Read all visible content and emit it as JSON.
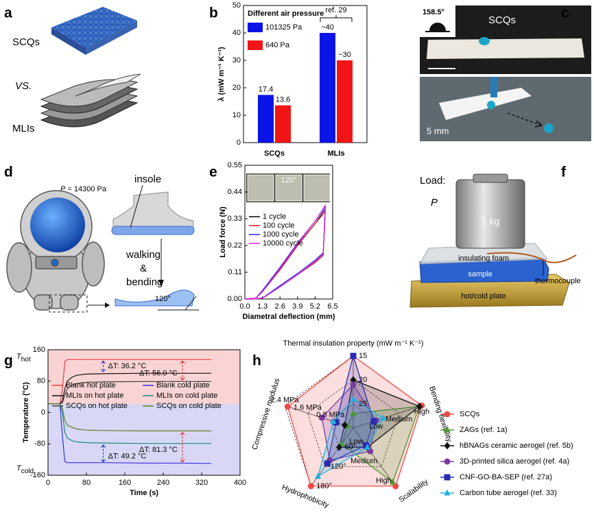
{
  "figure": {
    "panels": {
      "a": {
        "label": "a",
        "texts": [
          "SCQs",
          "VS.",
          "MLIs"
        ]
      },
      "c": {
        "label": "c",
        "texts": [
          "158.5°",
          "SCQs",
          "5 mm"
        ]
      },
      "d": {
        "label": "d",
        "pressure_symbol": "P",
        "pressure_value": " = 14300 Pa",
        "texts": [
          "insole",
          "walking",
          "&",
          "bending",
          "120°"
        ]
      },
      "f": {
        "label": "f",
        "texts": [
          "Load:",
          "P",
          "1 kg",
          "insulating foam",
          "sample",
          "thermocouple",
          "hot/cold plate"
        ]
      }
    }
  },
  "chart_data": [
    {
      "panel": "b",
      "type": "bar",
      "legend_title": "Different air pressure",
      "categories": [
        "SCQs",
        "MLIs"
      ],
      "series": [
        {
          "name": "101325 Pa",
          "color": "#0b14e6",
          "values": [
            17.4,
            40
          ],
          "value_labels": [
            "17.4",
            "~40"
          ]
        },
        {
          "name": "640 Pa",
          "color": "#f21515",
          "values": [
            13.6,
            30
          ],
          "value_labels": [
            "13.6",
            "~30"
          ]
        }
      ],
      "ylabel": "λ (mW m⁻¹ K⁻¹)",
      "ylim": [
        0,
        50
      ],
      "yticks": [
        0,
        10,
        20,
        30,
        40,
        50
      ],
      "annotations": [
        "ref. 29"
      ]
    },
    {
      "panel": "e",
      "type": "line",
      "x": [
        0,
        0.8,
        1.3,
        2.6,
        3.9,
        5.2,
        5.95,
        5.85,
        5.8,
        5.2,
        3.9,
        2.6,
        1.3,
        0.6,
        0
      ],
      "series": [
        {
          "name": "1 cycle",
          "color": "#000000",
          "values": [
            0,
            0.003,
            0.03,
            0.12,
            0.22,
            0.31,
            0.37,
            0.25,
            0.18,
            0.15,
            0.1,
            0.05,
            0.003,
            0,
            0
          ]
        },
        {
          "name": "100 cycle",
          "color": "#e8141e",
          "values": [
            0,
            0.003,
            0.03,
            0.12,
            0.22,
            0.31,
            0.36,
            0.24,
            0.18,
            0.15,
            0.1,
            0.05,
            0.003,
            0,
            0
          ]
        },
        {
          "name": "1000 cycle",
          "color": "#2424e0",
          "values": [
            0,
            0.003,
            0.035,
            0.13,
            0.23,
            0.32,
            0.38,
            0.25,
            0.19,
            0.16,
            0.105,
            0.055,
            0.004,
            0,
            0
          ]
        },
        {
          "name": "10000 cycle",
          "color": "#e020e0",
          "values": [
            0,
            0.003,
            0.03,
            0.125,
            0.225,
            0.32,
            0.385,
            0.25,
            0.185,
            0.155,
            0.1,
            0.05,
            0.003,
            0,
            0
          ]
        }
      ],
      "xlabel": "Diametral deflection (mm)",
      "ylabel": "Load force (N)",
      "xlim": [
        0,
        6.5
      ],
      "xticks": [
        {
          "value": 0,
          "label": "0.0"
        },
        1.3,
        2.6,
        3.9,
        5.2,
        6.5
      ],
      "ylim": [
        0,
        0.55
      ],
      "yticks": [
        {
          "value": 0,
          "label": "0.00"
        },
        0.11,
        0.22,
        0.33,
        0.44,
        0.55
      ],
      "annotations": [
        "120°"
      ]
    },
    {
      "panel": "g",
      "type": "line",
      "x": [
        0,
        25,
        30,
        35,
        40,
        50,
        60,
        80,
        120,
        200,
        280,
        340
      ],
      "series": [
        {
          "name": "Blank hot plate",
          "color": "#f03c3c",
          "values": [
            22,
            22,
            60,
            130,
            135,
            135,
            135,
            135,
            135,
            135,
            135,
            135
          ]
        },
        {
          "name": "Blank cold plate",
          "color": "#3030e0",
          "values": [
            22,
            22,
            -60,
            -125,
            -128,
            -128,
            -128,
            -128,
            -128,
            -129,
            -129,
            -130
          ]
        },
        {
          "name": "MLIs on hot plate",
          "color": "#111111",
          "values": [
            22,
            22,
            30,
            60,
            80,
            90,
            95,
            98,
            99,
            100,
            100,
            100
          ]
        },
        {
          "name": "MLIs on cold plate",
          "color": "#1a8a7a",
          "values": [
            22,
            22,
            0,
            -50,
            -65,
            -72,
            -75,
            -77,
            -78,
            -79,
            -79,
            -79
          ]
        },
        {
          "name": "SCQs on hot plate",
          "color": "#3a3a3a",
          "values": [
            22,
            22,
            25,
            45,
            60,
            70,
            74,
            77,
            78,
            79,
            79,
            79
          ]
        },
        {
          "name": "SCQs on cold plate",
          "color": "#5e7d2a",
          "values": [
            22,
            22,
            10,
            -20,
            -32,
            -38,
            -42,
            -45,
            -46,
            -47,
            -47,
            -47
          ]
        }
      ],
      "shading_colors": [
        "#fad4d4",
        "#d8d8f6"
      ],
      "xlabel": "Time (s)",
      "ylabel": "Temperature (°C)",
      "xlim": [
        0,
        400
      ],
      "xticks": [
        0,
        80,
        160,
        240,
        320,
        400
      ],
      "ylim": [
        -160,
        160
      ],
      "yticks": [
        -160,
        -80,
        0,
        80,
        160
      ],
      "annotations": [
        {
          "text": "T",
          "sub": "hot"
        },
        {
          "text": "T",
          "sub": "cold"
        },
        {
          "text": "ΔT: 36.2 °C"
        },
        {
          "text": "ΔT: 56.0 °C"
        },
        {
          "text": "ΔT: 49.2 °C"
        },
        {
          "text": "ΔT: 81.3 °C"
        }
      ]
    },
    {
      "panel": "h",
      "type": "radar",
      "axes": [
        {
          "label": "Thermal insulation property (mW m⁻¹ K⁻¹)",
          "lim": [
            30,
            15
          ],
          "ticks": [
            15,
            20,
            25
          ]
        },
        {
          "label": "Bending flexibility",
          "lim": [
            0,
            3
          ],
          "ticks": [
            {
              "value": 3,
              "label": "High"
            },
            {
              "value": 2,
              "label": "Medium"
            },
            {
              "value": 1,
              "label": "Low"
            }
          ]
        },
        {
          "label": "Scalability",
          "lim": [
            0,
            3
          ],
          "ticks": [
            {
              "value": 3,
              "label": "High"
            },
            {
              "value": 2,
              "label": "Medium"
            },
            {
              "value": 1,
              "label": "Low"
            }
          ]
        },
        {
          "label": "Hydrophobicity",
          "lim": [
            0,
            180
          ],
          "ticks": [
            {
              "value": 180,
              "label": "180°"
            },
            {
              "value": 120,
              "label": "120°"
            },
            {
              "value": 60,
              "label": "60°"
            }
          ]
        },
        {
          "label": "Compressive modulus",
          "lim": [
            0,
            2.4
          ],
          "ticks": [
            {
              "value": 2.4,
              "label": "2.4 MPa"
            },
            {
              "value": 1.6,
              "label": "1.6 MPa"
            },
            {
              "value": 0.8,
              "label": "0.8 MPa"
            }
          ]
        }
      ],
      "series": [
        {
          "name": "SCQs",
          "color": "#f04848",
          "marker": "circle",
          "values": [
            15,
            3,
            3,
            180,
            2.3
          ]
        },
        {
          "name": "ZAGs (ref. 1a)",
          "color": "#4a9a2a",
          "marker": "triangle",
          "values": [
            27,
            2.9,
            2.8,
            50,
            0.2
          ]
        },
        {
          "name": "hBNAGs ceramic aerogel (ref. 5b)",
          "color": "#111111",
          "marker": "diamond",
          "values": [
            20,
            2.9,
            1,
            60,
            0.3
          ]
        },
        {
          "name": "3D-printed silica aerogel (ref. 4a)",
          "color": "#7a3aa0",
          "marker": "circle",
          "values": [
            21,
            1,
            1.2,
            100,
            1.1
          ]
        },
        {
          "name": "CNF-GO-BA-SEP (ref. 27a)",
          "color": "#2a2ab0",
          "marker": "square",
          "values": [
            15,
            0.9,
            0.9,
            110,
            0.6
          ]
        },
        {
          "name": "Carbon tube aerogel (ref. 33)",
          "color": "#20b0e0",
          "marker": "triangle",
          "values": [
            24,
            1.3,
            1,
            150,
            0.7
          ]
        }
      ]
    }
  ]
}
